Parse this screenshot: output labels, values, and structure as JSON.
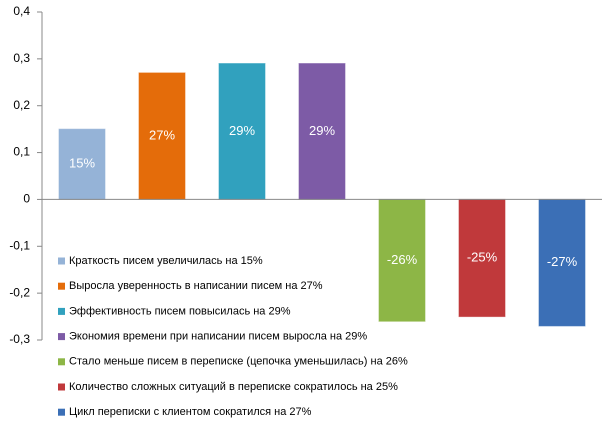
{
  "chart_data": {
    "type": "bar",
    "ylim": [
      -0.3,
      0.4
    ],
    "yticks": [
      {
        "value": 0.4,
        "label": "0,4"
      },
      {
        "value": 0.3,
        "label": "0,3"
      },
      {
        "value": 0.2,
        "label": "0,2"
      },
      {
        "value": 0.1,
        "label": "0,1"
      },
      0,
      {
        "value": -0.1,
        "label": "-0,1"
      },
      {
        "value": -0.2,
        "label": "-0,2"
      },
      {
        "value": -0.3,
        "label": "-0,3"
      }
    ],
    "legend": "lower-left",
    "series": [
      {
        "name": "Краткость писем увеличилась на 15%",
        "color": "#95b3d7",
        "values": [
          0.15
        ],
        "value_labels": [
          "15%"
        ]
      },
      {
        "name": "Выросла уверенность  в написании писем на 27%",
        "color": "#e46c0a",
        "values": [
          0.27
        ],
        "value_labels": [
          "27%"
        ]
      },
      {
        "name": "Эффективность  писем повысилась на 29%",
        "color": "#31a1be",
        "values": [
          0.29
        ],
        "value_labels": [
          "29%"
        ]
      },
      {
        "name": "Экономия времени  при написании писем выросла на 29%",
        "color": "#7d5ba6",
        "values": [
          0.29
        ],
        "value_labels": [
          "29%"
        ]
      },
      {
        "name": "Стало меньше  писем в переписке  (цепочка уменьшилась) на 26%",
        "color": "#8db646",
        "values": [
          -0.26
        ],
        "value_labels": [
          "-26%"
        ]
      },
      {
        "name": "Количество сложных ситуаций в переписке  сократилось на 25%",
        "color": "#c0393b",
        "values": [
          -0.25
        ],
        "value_labels": [
          "-25%"
        ]
      },
      {
        "name": "Цикл переписки  с клиентом сократился на 27%",
        "color": "#3b6fb6",
        "values": [
          -0.27
        ],
        "value_labels": [
          "-27%"
        ]
      }
    ]
  }
}
